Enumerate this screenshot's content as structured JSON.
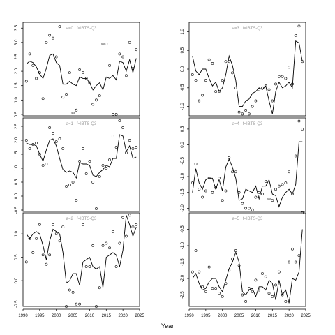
{
  "chart_data": [
    {
      "type": "scatter",
      "title": "a=0 : f=IBTS-Q3",
      "xlim": [
        1990,
        2025
      ],
      "ylim": [
        0.45,
        3.7
      ],
      "yticks": [
        0.5,
        1.0,
        1.5,
        2.0,
        2.5,
        3.0,
        3.5
      ],
      "series": [
        {
          "kind": "line",
          "x": [
            1991,
            1992,
            1993,
            1994,
            1995,
            1996,
            1997,
            1998,
            1999,
            2000,
            2001,
            2002,
            2003,
            2004,
            2005,
            2006,
            2007,
            2008,
            2009,
            2010,
            2011,
            2012,
            2013,
            2014,
            2015,
            2016,
            2017,
            2018,
            2019,
            2020,
            2021,
            2022,
            2023,
            2024
          ],
          "y": [
            2.25,
            2.35,
            2.3,
            2.15,
            1.9,
            1.75,
            2.1,
            2.55,
            2.6,
            2.3,
            2.2,
            1.55,
            1.55,
            1.65,
            1.55,
            1.5,
            1.8,
            1.75,
            1.75,
            1.6,
            1.35,
            1.5,
            1.6,
            1.35,
            1.8,
            1.75,
            1.85,
            1.7,
            2.35,
            2.3,
            2.0,
            2.4,
            1.95,
            2.45
          ]
        },
        {
          "kind": "points",
          "x": [
            1991,
            1992,
            1993,
            1994,
            1995,
            1996,
            1997,
            1998,
            1999,
            2000,
            2001,
            2002,
            2003,
            2004,
            2005,
            2006,
            2007,
            2008,
            2009,
            2010,
            2011,
            2012,
            2013,
            2014,
            2015,
            2016,
            2017,
            2018,
            2019,
            2020,
            2021,
            2022,
            2023,
            2024
          ],
          "y": [
            1.65,
            2.6,
            2.2,
            1.75,
            1.95,
            1.05,
            3.0,
            3.25,
            3.15,
            2.5,
            3.55,
            1.1,
            1.2,
            1.95,
            0.55,
            0.65,
            2.05,
            1.95,
            1.75,
            1.6,
            0.85,
            1.0,
            1.15,
            2.95,
            2.95,
            2.2,
            0.5,
            0.5,
            2.6,
            2.5,
            1.85,
            3.0,
            2.1,
            2.75
          ]
        }
      ]
    },
    {
      "type": "scatter",
      "title": "a=1 : f=IBTS-Q3",
      "xlim": [
        1990,
        2025
      ],
      "ylim": [
        -0.55,
        2.8
      ],
      "yticks": [
        -0.5,
        0.0,
        0.5,
        1.0,
        1.5,
        2.0,
        2.5
      ],
      "series": [
        {
          "kind": "line",
          "x": [
            1991,
            1992,
            1993,
            1994,
            1995,
            1996,
            1997,
            1998,
            1999,
            2000,
            2001,
            2002,
            2003,
            2004,
            2005,
            2006,
            2007,
            2008,
            2009,
            2010,
            2011,
            2012,
            2013,
            2014,
            2015,
            2016,
            2017,
            2018,
            2019,
            2020,
            2021,
            2022,
            2023,
            2024
          ],
          "y": [
            1.9,
            1.85,
            1.85,
            1.8,
            1.5,
            1.25,
            1.65,
            2.0,
            2.05,
            1.8,
            1.35,
            0.95,
            0.85,
            0.9,
            0.85,
            0.65,
            1.2,
            1.15,
            1.15,
            1.1,
            0.75,
            0.7,
            0.85,
            0.95,
            1.1,
            1.05,
            1.35,
            1.35,
            2.2,
            2.15,
            1.6,
            1.8,
            1.35,
            1.4
          ]
        },
        {
          "kind": "points",
          "x": [
            1991,
            1992,
            1993,
            1994,
            1995,
            1996,
            1997,
            1998,
            1999,
            2000,
            2001,
            2002,
            2003,
            2004,
            2005,
            2006,
            2007,
            2008,
            2009,
            2010,
            2011,
            2012,
            2013,
            2014,
            2015,
            2016,
            2017,
            2018,
            2019,
            2020,
            2021,
            2022,
            2023,
            2024
          ],
          "y": [
            2.0,
            1.7,
            1.85,
            1.9,
            1.5,
            1.1,
            1.15,
            2.45,
            2.25,
            1.95,
            2.05,
            1.7,
            0.35,
            0.4,
            0.5,
            -0.15,
            1.25,
            1.7,
            0.8,
            1.25,
            0.5,
            -0.45,
            0.7,
            1.1,
            1.0,
            1.3,
            2.15,
            1.75,
            2.7,
            2.45,
            1.55,
            2.0,
            1.7,
            1.75
          ]
        }
      ]
    },
    {
      "type": "scatter",
      "title": "a=2 : f=IBTS-Q3",
      "xlim": [
        1990,
        2025
      ],
      "ylim": [
        -0.55,
        1.45
      ],
      "yticks": [
        -0.5,
        0.0,
        0.5,
        1.0
      ],
      "series": [
        {
          "kind": "line",
          "x": [
            1991,
            1992,
            1993,
            1994,
            1995,
            1996,
            1997,
            1998,
            1999,
            2000,
            2001,
            2002,
            2003,
            2004,
            2005,
            2006,
            2007,
            2008,
            2009,
            2010,
            2011,
            2012,
            2013,
            2014,
            2015,
            2016,
            2017,
            2018,
            2019,
            2020,
            2021,
            2022,
            2023,
            2024
          ],
          "y": [
            1.0,
            0.9,
            1.0,
            1.05,
            1.0,
            0.75,
            0.45,
            0.85,
            1.1,
            1.05,
            1.0,
            0.6,
            -0.05,
            0.0,
            0.15,
            0.15,
            -0.1,
            0.4,
            0.45,
            0.5,
            0.3,
            0.25,
            0.3,
            -0.15,
            0.5,
            0.55,
            0.6,
            0.55,
            0.3,
            0.65,
            1.4,
            1.2,
            0.95,
            1.15
          ]
        },
        {
          "kind": "points",
          "x": [
            1991,
            1992,
            1993,
            1994,
            1995,
            1996,
            1997,
            1998,
            1999,
            2000,
            2001,
            2002,
            2003,
            2004,
            2005,
            2006,
            2007,
            2008,
            2009,
            2010,
            2011,
            2012,
            2013,
            2014,
            2015,
            2016,
            2017,
            2018,
            2019,
            2020,
            2021,
            2022,
            2023,
            2024
          ],
          "y": [
            0.4,
            0.9,
            0.6,
            0.9,
            1.2,
            0.55,
            0.35,
            0.55,
            1.2,
            1.0,
            0.85,
            1.15,
            -0.55,
            -0.2,
            -0.25,
            -0.5,
            -0.5,
            1.2,
            0.3,
            0.3,
            0.75,
            -0.55,
            -0.15,
            0.75,
            0.8,
            0.7,
            1.05,
            0.3,
            0.8,
            1.35,
            0.95,
            1.4,
            1.15,
            1.2
          ]
        }
      ]
    },
    {
      "type": "scatter",
      "title": "a=3 : f=IBTS-Q3",
      "xlim": [
        1990,
        2025
      ],
      "ylim": [
        -1.25,
        1.25
      ],
      "yticks": [
        -1.0,
        -0.5,
        0.0,
        0.5,
        1.0
      ],
      "series": [
        {
          "kind": "line",
          "x": [
            1991,
            1992,
            1993,
            1994,
            1995,
            1996,
            1997,
            1998,
            1999,
            2000,
            2001,
            2002,
            2003,
            2004,
            2005,
            2006,
            2007,
            2008,
            2009,
            2010,
            2011,
            2012,
            2013,
            2014,
            2015,
            2016,
            2017,
            2018,
            2019,
            2020,
            2021,
            2022,
            2023,
            2024
          ],
          "y": [
            0.35,
            -0.05,
            -0.15,
            0.0,
            0.0,
            -0.25,
            -0.45,
            -0.35,
            -0.6,
            -0.5,
            -0.15,
            0.35,
            0.1,
            -0.3,
            -1.0,
            -1.0,
            -0.85,
            -0.8,
            -0.65,
            -0.6,
            -0.5,
            -0.55,
            -0.45,
            -0.85,
            -1.2,
            -0.6,
            -0.35,
            -0.5,
            -0.45,
            -0.35,
            -0.5,
            0.75,
            0.7,
            0.2
          ]
        },
        {
          "kind": "points",
          "x": [
            1991,
            1992,
            1993,
            1994,
            1995,
            1996,
            1997,
            1998,
            1999,
            2000,
            2001,
            2002,
            2003,
            2004,
            2005,
            2006,
            2007,
            2008,
            2009,
            2010,
            2011,
            2012,
            2013,
            2014,
            2015,
            2016,
            2017,
            2018,
            2019,
            2020,
            2021,
            2022,
            2023,
            2024
          ],
          "y": [
            -0.15,
            -0.3,
            -0.85,
            -0.7,
            -0.3,
            0.25,
            0.15,
            -0.6,
            -0.6,
            -0.3,
            0.2,
            0.2,
            -0.1,
            -0.5,
            -1.15,
            -1.2,
            -1.1,
            -1.2,
            -1.0,
            -0.85,
            -0.55,
            -0.5,
            -0.45,
            -0.55,
            -0.85,
            -0.4,
            -0.2,
            -0.2,
            -0.25,
            0.05,
            -0.4,
            0.9,
            1.15,
            0.2
          ]
        }
      ]
    },
    {
      "type": "scatter",
      "title": "a=4 : f=IBTS-Q3",
      "xlim": [
        1990,
        2025
      ],
      "ylim": [
        -2.1,
        0.85
      ],
      "yticks": [
        -2.0,
        -1.5,
        -1.0,
        -0.5,
        0.0,
        0.5
      ],
      "series": [
        {
          "kind": "line",
          "x": [
            1991,
            1992,
            1993,
            1994,
            1995,
            1996,
            1997,
            1998,
            1999,
            2000,
            2001,
            2002,
            2003,
            2004,
            2005,
            2006,
            2007,
            2008,
            2009,
            2010,
            2011,
            2012,
            2013,
            2014,
            2015,
            2016,
            2017,
            2018,
            2019,
            2020,
            2021,
            2022,
            2023,
            2024
          ],
          "y": [
            -1.5,
            -0.75,
            -1.2,
            -1.4,
            -1.1,
            -1.05,
            -1.05,
            -1.4,
            -1.1,
            -1.45,
            -0.7,
            -0.45,
            -0.7,
            -1.05,
            -1.75,
            -1.7,
            -1.4,
            -1.45,
            -1.5,
            -1.3,
            -1.7,
            -1.3,
            -1.3,
            -1.1,
            -1.55,
            -1.6,
            -1.95,
            -1.65,
            -1.5,
            -1.4,
            -1.55,
            -1.25,
            0.1,
            0.1
          ]
        },
        {
          "kind": "points",
          "x": [
            1991,
            1992,
            1993,
            1994,
            1995,
            1996,
            1997,
            1998,
            1999,
            2000,
            2001,
            2002,
            2003,
            2004,
            2005,
            2006,
            2007,
            2008,
            2009,
            2010,
            2011,
            2012,
            2013,
            2014,
            2015,
            2016,
            2017,
            2018,
            2019,
            2020,
            2021,
            2022,
            2023,
            2024
          ],
          "y": [
            -1.2,
            -0.6,
            -1.4,
            -1.65,
            -1.45,
            -1.05,
            -1.5,
            -1.35,
            -1.05,
            -1.75,
            -1.45,
            -0.4,
            -0.85,
            -0.85,
            -1.5,
            -1.85,
            -2.0,
            -2.0,
            -2.05,
            -1.65,
            -1.5,
            -1.55,
            -1.15,
            -1.7,
            -1.75,
            -1.4,
            -1.3,
            -1.25,
            -1.2,
            -0.85,
            -1.55,
            -0.35,
            0.75,
            0.5
          ]
        }
      ]
    },
    {
      "type": "scatter",
      "title": "a=5 : f=IBTS-Q3",
      "xlim": [
        1990,
        2025
      ],
      "ylim": [
        -2.85,
        0.0
      ],
      "yticks": [
        -2.5,
        -2.0,
        -1.5,
        -1.0,
        -0.5
      ],
      "series": [
        {
          "kind": "line",
          "x": [
            1991,
            1992,
            1993,
            1994,
            1995,
            1996,
            1997,
            1998,
            1999,
            2000,
            2001,
            2002,
            2003,
            2004,
            2005,
            2006,
            2007,
            2008,
            2009,
            2010,
            2011,
            2012,
            2013,
            2014,
            2015,
            2016,
            2017,
            2018,
            2019,
            2020,
            2021,
            2022,
            2023,
            2024
          ],
          "y": [
            -2.0,
            -1.85,
            -2.15,
            -2.35,
            -2.3,
            -2.1,
            -2.0,
            -2.0,
            -2.25,
            -2.4,
            -2.05,
            -1.7,
            -1.5,
            -1.2,
            -1.5,
            -2.4,
            -2.5,
            -2.35,
            -2.3,
            -2.55,
            -2.25,
            -2.25,
            -2.35,
            -2.05,
            -2.15,
            -2.65,
            -2.05,
            -2.5,
            -2.35,
            -2.75,
            -2.0,
            -2.05,
            -1.8,
            -0.5
          ]
        },
        {
          "kind": "points",
          "x": [
            1991,
            1992,
            1993,
            1994,
            1995,
            1996,
            1997,
            1998,
            1999,
            2000,
            2001,
            2002,
            2003,
            2004,
            2005,
            2006,
            2007,
            2008,
            2009,
            2010,
            2011,
            2012,
            2013,
            2014,
            2015,
            2016,
            2017,
            2018,
            2019,
            2020,
            2021,
            2022,
            2023,
            2024
          ],
          "y": [
            -1.8,
            -1.15,
            -1.8,
            -2.25,
            -2.4,
            -1.65,
            -2.3,
            -2.3,
            -2.45,
            -2.55,
            -2.15,
            -1.75,
            -1.4,
            -1.15,
            -1.6,
            -2.5,
            -2.7,
            -2.3,
            -2.4,
            -2.05,
            -2.35,
            -1.85,
            -1.95,
            -2.45,
            -2.55,
            -2.2,
            -1.8,
            -2.5,
            -2.7,
            -1.5,
            -1.1,
            -1.5,
            -1.3,
            0.0
          ]
        }
      ]
    }
  ],
  "xaxis": {
    "label": "Year",
    "ticks": [
      1990,
      1995,
      2000,
      2005,
      2010,
      2015,
      2020,
      2025
    ]
  }
}
